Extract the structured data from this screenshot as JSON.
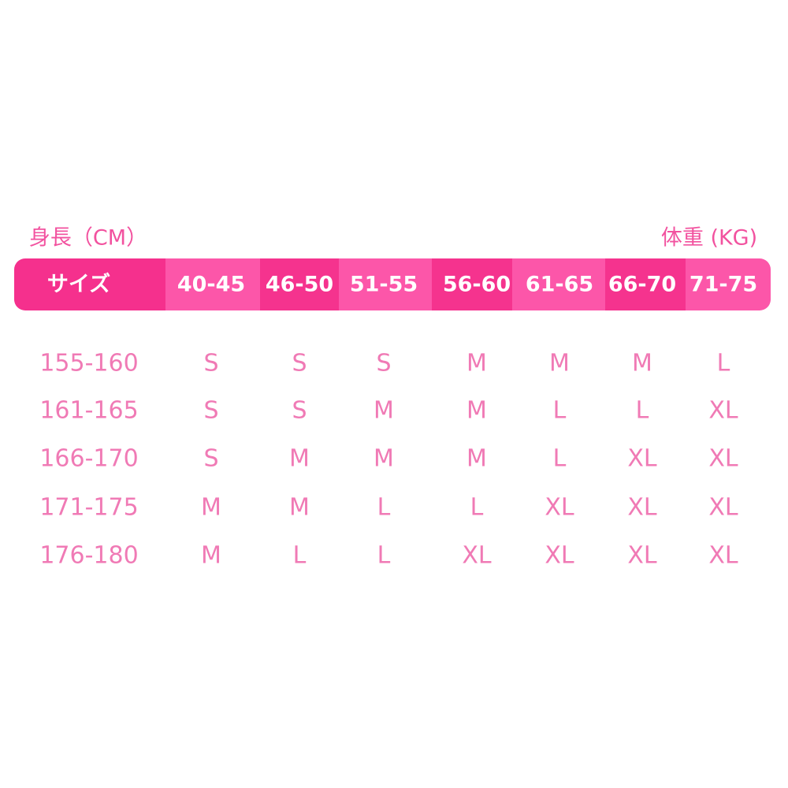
{
  "header": {
    "height_label": "身長（CM）",
    "weight_label": "体重 (KG)"
  },
  "table": {
    "columns": [
      "サイズ",
      "40-45",
      "46-50",
      "51-55",
      "56-60",
      "61-65",
      "66-70",
      "71-75"
    ],
    "rows": [
      [
        "155-160",
        "S",
        "S",
        "S",
        "M",
        "M",
        "M",
        "L"
      ],
      [
        "161-165",
        "S",
        "S",
        "M",
        "M",
        "L",
        "L",
        "XL"
      ],
      [
        "166-170",
        "S",
        "M",
        "M",
        "M",
        "L",
        "XL",
        "XL"
      ],
      [
        "171-175",
        "M",
        "M",
        "L",
        "L",
        "XL",
        "XL",
        "XL"
      ],
      [
        "176-180",
        "M",
        "L",
        "L",
        "XL",
        "XL",
        "XL",
        "XL"
      ]
    ]
  }
}
